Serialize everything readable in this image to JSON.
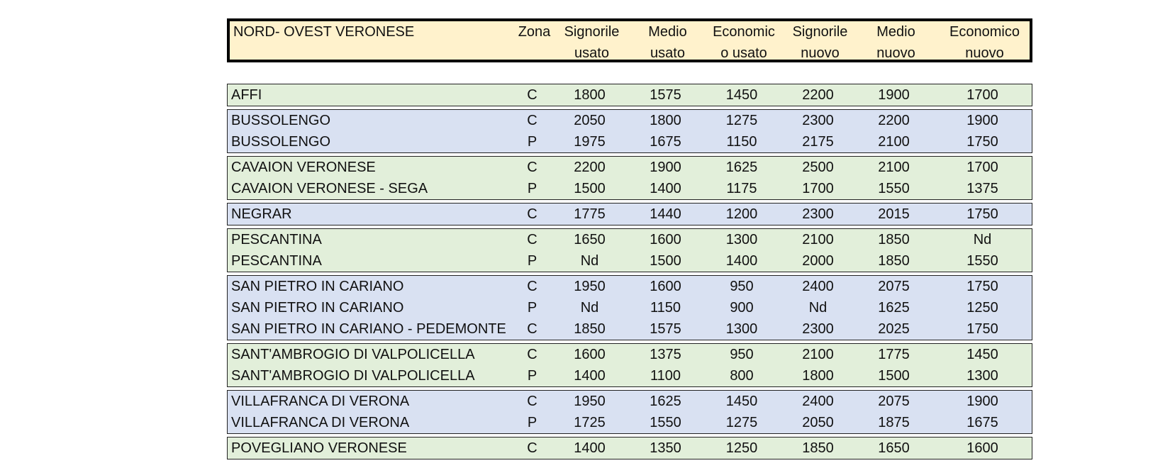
{
  "header": {
    "title": "NORD- OVEST VERONESE",
    "zona": "Zona",
    "columns": [
      [
        "Signorile",
        "usato"
      ],
      [
        "Medio",
        "usato"
      ],
      [
        "Economic",
        "o usato"
      ],
      [
        "Signorile",
        "nuovo"
      ],
      [
        "Medio",
        "nuovo"
      ],
      [
        "Economico",
        "nuovo"
      ]
    ]
  },
  "groups": [
    {
      "color": "green",
      "rows": [
        {
          "name": "AFFI",
          "zona": "C",
          "values": [
            "1800",
            "1575",
            "1450",
            "2200",
            "1900",
            "1700"
          ]
        }
      ]
    },
    {
      "color": "blue",
      "rows": [
        {
          "name": "BUSSOLENGO",
          "zona": "C",
          "values": [
            "2050",
            "1800",
            "1275",
            "2300",
            "2200",
            "1900"
          ]
        },
        {
          "name": "BUSSOLENGO",
          "zona": "P",
          "values": [
            "1975",
            "1675",
            "1150",
            "2175",
            "2100",
            "1750"
          ]
        }
      ]
    },
    {
      "color": "green",
      "rows": [
        {
          "name": "CAVAION VERONESE",
          "zona": "C",
          "values": [
            "2200",
            "1900",
            "1625",
            "2500",
            "2100",
            "1700"
          ]
        },
        {
          "name": "CAVAION VERONESE - SEGA",
          "zona": "P",
          "values": [
            "1500",
            "1400",
            "1175",
            "1700",
            "1550",
            "1375"
          ]
        }
      ]
    },
    {
      "color": "blue",
      "rows": [
        {
          "name": "NEGRAR",
          "zona": "C",
          "values": [
            "1775",
            "1440",
            "1200",
            "2300",
            "2015",
            "1750"
          ]
        }
      ]
    },
    {
      "color": "green",
      "rows": [
        {
          "name": "PESCANTINA",
          "zona": "C",
          "values": [
            "1650",
            "1600",
            "1300",
            "2100",
            "1850",
            "Nd"
          ]
        },
        {
          "name": "PESCANTINA",
          "zona": "P",
          "values": [
            "Nd",
            "1500",
            "1400",
            "2000",
            "1850",
            "1550"
          ]
        }
      ]
    },
    {
      "color": "blue",
      "rows": [
        {
          "name": "SAN PIETRO IN CARIANO",
          "zona": "C",
          "values": [
            "1950",
            "1600",
            "950",
            "2400",
            "2075",
            "1750"
          ]
        },
        {
          "name": "SAN PIETRO IN CARIANO",
          "zona": "P",
          "values": [
            "Nd",
            "1150",
            "900",
            "Nd",
            "1625",
            "1250"
          ]
        },
        {
          "name": "SAN PIETRO IN CARIANO - PEDEMONTE",
          "zona": "C",
          "values": [
            "1850",
            "1575",
            "1300",
            "2300",
            "2025",
            "1750"
          ]
        }
      ]
    },
    {
      "color": "green",
      "rows": [
        {
          "name": "SANT'AMBROGIO DI VALPOLICELLA",
          "zona": "C",
          "values": [
            "1600",
            "1375",
            "950",
            "2100",
            "1775",
            "1450"
          ]
        },
        {
          "name": "SANT'AMBROGIO DI VALPOLICELLA",
          "zona": "P",
          "values": [
            "1400",
            "1100",
            "800",
            "1800",
            "1500",
            "1300"
          ]
        }
      ]
    },
    {
      "color": "blue",
      "rows": [
        {
          "name": "VILLAFRANCA DI VERONA",
          "zona": "C",
          "values": [
            "1950",
            "1625",
            "1450",
            "2400",
            "2075",
            "1900"
          ]
        },
        {
          "name": "VILLAFRANCA DI VERONA",
          "zona": "P",
          "values": [
            "1725",
            "1550",
            "1275",
            "2050",
            "1875",
            "1675"
          ]
        }
      ]
    },
    {
      "color": "green",
      "rows": [
        {
          "name": "POVEGLIANO VERONESE",
          "zona": "C",
          "values": [
            "1400",
            "1350",
            "1250",
            "1850",
            "1650",
            "1600"
          ]
        }
      ]
    }
  ]
}
